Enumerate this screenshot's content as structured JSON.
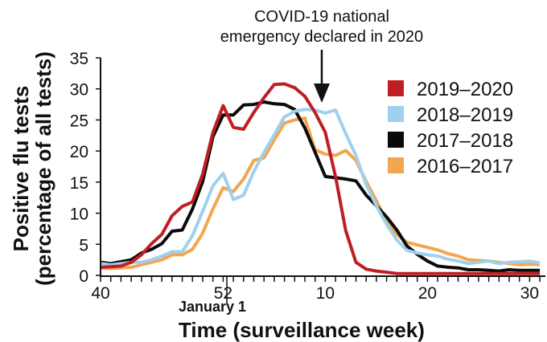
{
  "chart_data": {
    "type": "line",
    "title": "",
    "xlabel": "Time (surveillance week)",
    "ylabel": [
      "Positive flu tests",
      "(percentage of all tests)"
    ],
    "x": [
      40,
      41,
      42,
      43,
      44,
      45,
      46,
      47,
      48,
      49,
      50,
      51,
      52,
      1,
      2,
      3,
      4,
      5,
      6,
      7,
      8,
      9,
      10,
      11,
      12,
      13,
      14,
      15,
      16,
      17,
      18,
      19,
      20,
      21,
      22,
      23,
      24,
      25,
      26,
      27,
      28,
      29,
      30,
      31
    ],
    "xticks": [
      "40",
      "52",
      "10",
      "20",
      "30"
    ],
    "xtick_sub": "January 1",
    "yticks": [
      "0",
      "5",
      "10",
      "15",
      "20",
      "25",
      "30",
      "35"
    ],
    "ylim": [
      0,
      35
    ],
    "grid": false,
    "legend_position": "right",
    "annotation": {
      "text": [
        "COVID-19 national",
        "emergency declared in 2020"
      ],
      "x": 10
    },
    "series": [
      {
        "name": "2016–2017",
        "color": "#f2a650",
        "values": [
          1.2,
          1.1,
          1.2,
          1.3,
          1.7,
          2.1,
          2.5,
          3.3,
          3.3,
          4.2,
          6.8,
          10.7,
          14.1,
          13.5,
          15.5,
          18.5,
          18.9,
          21.8,
          24.5,
          25.0,
          25.3,
          20.2,
          19.5,
          19.3,
          20.1,
          18.5,
          15.1,
          12.0,
          8.6,
          6.6,
          5.3,
          4.9,
          4.5,
          4.1,
          3.5,
          3.1,
          2.5,
          2.4,
          2.3,
          2.1,
          1.9,
          1.7,
          1.8,
          1.7
        ]
      },
      {
        "name": "2017–2018",
        "color": "#0a0a0a",
        "values": [
          2.1,
          1.9,
          2.2,
          2.5,
          3.6,
          4.2,
          5.1,
          7.1,
          7.3,
          10.7,
          15.1,
          22.3,
          25.8,
          25.8,
          27.4,
          27.5,
          27.9,
          27.6,
          27.5,
          26.7,
          23.7,
          19.8,
          15.9,
          15.7,
          15.5,
          15.2,
          12.9,
          11.2,
          9.4,
          7.3,
          4.7,
          3.4,
          2.3,
          1.5,
          1.3,
          1.2,
          0.9,
          0.9,
          0.8,
          0.7,
          0.9,
          0.8,
          0.8,
          0.8
        ]
      },
      {
        "name": "2018–2019",
        "color": "#9fd0ee",
        "values": [
          1.9,
          1.7,
          1.9,
          2.1,
          2.1,
          2.5,
          3.1,
          3.8,
          3.8,
          6.4,
          10.3,
          14.4,
          16.4,
          12.2,
          12.9,
          16.7,
          19.8,
          22.6,
          25.5,
          26.4,
          26.7,
          26.6,
          26.1,
          26.6,
          22.8,
          19.3,
          14.6,
          11.2,
          8.2,
          5.7,
          4.0,
          3.6,
          3.3,
          3.1,
          2.6,
          2.3,
          1.9,
          2.1,
          2.3,
          1.9,
          2.1,
          2.2,
          2.3,
          2.0
        ]
      },
      {
        "name": "2019–2020",
        "color": "#be1e24",
        "values": [
          1.3,
          1.4,
          1.5,
          2.1,
          3.3,
          5.1,
          6.6,
          9.6,
          11.1,
          11.8,
          16.3,
          23.0,
          27.3,
          23.8,
          23.5,
          26.2,
          28.6,
          30.7,
          30.8,
          30.2,
          28.8,
          26.2,
          23.0,
          15.9,
          7.2,
          2.1,
          1.0,
          0.7,
          0.5,
          0.3,
          0.3,
          0.3,
          0.3,
          0.3,
          0.3,
          0.3,
          0.3,
          0.3,
          0.3,
          0.3,
          0.3,
          0.3,
          0.3,
          0.3
        ]
      }
    ],
    "legend_order": [
      "2019–2020",
      "2018–2019",
      "2017–2018",
      "2016–2017"
    ]
  }
}
